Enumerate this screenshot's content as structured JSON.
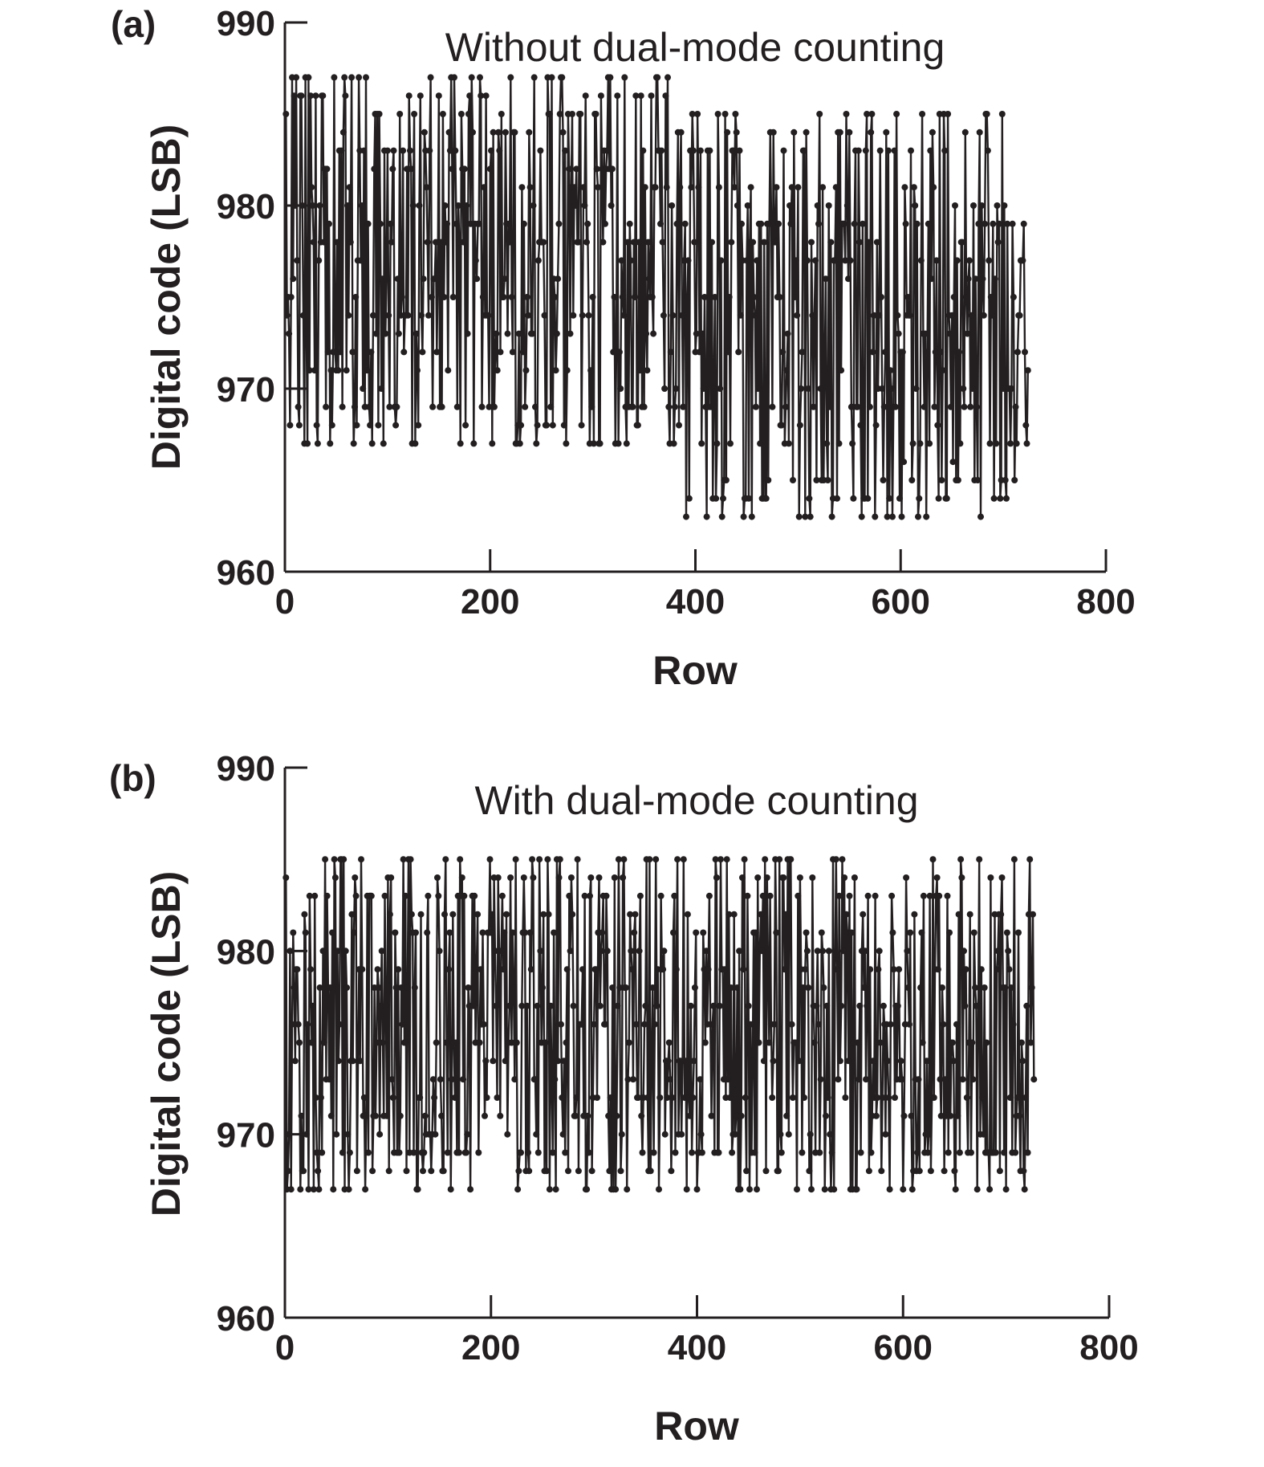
{
  "chart_data": [
    {
      "panel": "(a)",
      "type": "line",
      "title": "Without dual-mode counting",
      "xlabel": "Row",
      "ylabel": "Digital code (LSB)",
      "xlim": [
        0,
        800
      ],
      "ylim": [
        960,
        990
      ],
      "xticks": [
        "0",
        "200",
        "400",
        "600",
        "800"
      ],
      "yticks": [
        "960",
        "970",
        "980",
        "990"
      ],
      "grid": false,
      "markers": true,
      "series": [
        {
          "x_start": 1,
          "x_step": 1,
          "segments": [
            {
              "from": 1,
              "to": 110,
              "min": 967,
              "max": 987,
              "center": 977
            },
            {
              "from": 110,
              "to": 230,
              "min": 967,
              "max": 987,
              "center": 978
            },
            {
              "from": 230,
              "to": 380,
              "min": 967,
              "max": 987,
              "center": 977
            },
            {
              "from": 380,
              "to": 725,
              "min": 963,
              "max": 985,
              "center": 974
            }
          ]
        }
      ]
    },
    {
      "panel": "(b)",
      "type": "line",
      "title": "With dual-mode counting",
      "xlabel": "Row",
      "ylabel": "Digital code (LSB)",
      "xlim": [
        0,
        800
      ],
      "ylim": [
        960,
        990
      ],
      "xticks": [
        "0",
        "200",
        "400",
        "600",
        "800"
      ],
      "yticks": [
        "960",
        "970",
        "980",
        "990"
      ],
      "grid": false,
      "markers": true,
      "series": [
        {
          "x_start": 1,
          "x_step": 1,
          "segments": [
            {
              "from": 1,
              "to": 728,
              "min": 967,
              "max": 985,
              "center": 976
            }
          ]
        }
      ]
    }
  ]
}
